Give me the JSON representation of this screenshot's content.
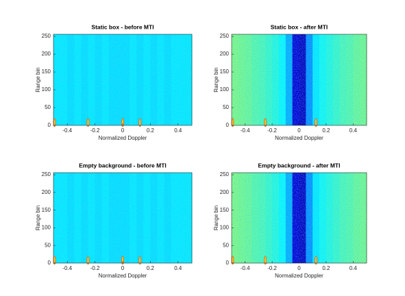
{
  "chart_data": [
    {
      "type": "heatmap",
      "title": "Static box - before MTI",
      "x_label": "Normalized Doppler",
      "y_label": "Range bin",
      "colormap": "jet",
      "x": [
        -0.475,
        -0.425,
        -0.375,
        -0.325,
        -0.275,
        -0.225,
        -0.175,
        -0.125,
        -0.075,
        -0.025,
        0.025,
        0.075,
        0.125,
        0.175,
        0.225,
        0.275,
        0.325,
        0.375,
        0.425,
        0.475
      ],
      "values": [
        0.36,
        0.36,
        0.35,
        0.36,
        0.35,
        0.36,
        0.35,
        0.36,
        0.35,
        0.35,
        0.35,
        0.36,
        0.35,
        0.36,
        0.35,
        0.36,
        0.35,
        0.36,
        0.36,
        0.36
      ],
      "targets": {
        "x": [
          -0.5,
          -0.25,
          0,
          0.125
        ],
        "y": [
          8,
          8,
          8,
          8
        ]
      },
      "xlim": [
        -0.5,
        0.5
      ],
      "xticks": [
        -0.4,
        -0.2,
        0,
        0.2,
        0.4
      ],
      "ylim": [
        0,
        256
      ],
      "yticks": [
        0,
        50,
        100,
        150,
        200,
        250
      ]
    },
    {
      "type": "heatmap",
      "title": "Static box - after MTI",
      "x_label": "Normalized Doppler",
      "y_label": "Range bin",
      "colormap": "jet",
      "x": [
        -0.475,
        -0.425,
        -0.375,
        -0.325,
        -0.275,
        -0.225,
        -0.175,
        -0.125,
        -0.075,
        -0.025,
        0.025,
        0.075,
        0.125,
        0.175,
        0.225,
        0.275,
        0.325,
        0.375,
        0.425,
        0.475
      ],
      "values": [
        0.5,
        0.49,
        0.48,
        0.46,
        0.45,
        0.43,
        0.41,
        0.38,
        0.3,
        0.08,
        0.06,
        0.27,
        0.36,
        0.39,
        0.41,
        0.43,
        0.45,
        0.46,
        0.48,
        0.49
      ],
      "targets": {
        "x": [
          -0.5,
          -0.25,
          0.125
        ],
        "y": [
          8,
          8,
          8
        ]
      },
      "xlim": [
        -0.5,
        0.5
      ],
      "xticks": [
        -0.4,
        -0.2,
        0,
        0.2,
        0.4
      ],
      "ylim": [
        0,
        256
      ],
      "yticks": [
        0,
        50,
        100,
        150,
        200,
        250
      ]
    },
    {
      "type": "heatmap",
      "title": "Empty background - before MTI",
      "x_label": "Normalized Doppler",
      "y_label": "Range bin",
      "colormap": "jet",
      "x": [
        -0.475,
        -0.425,
        -0.375,
        -0.325,
        -0.275,
        -0.225,
        -0.175,
        -0.125,
        -0.075,
        -0.025,
        0.025,
        0.075,
        0.125,
        0.175,
        0.225,
        0.275,
        0.325,
        0.375,
        0.425,
        0.475
      ],
      "values": [
        0.36,
        0.36,
        0.35,
        0.36,
        0.35,
        0.36,
        0.35,
        0.36,
        0.35,
        0.35,
        0.35,
        0.36,
        0.35,
        0.36,
        0.35,
        0.36,
        0.35,
        0.36,
        0.36,
        0.36
      ],
      "targets": {
        "x": [
          -0.5,
          -0.25,
          0,
          0.125
        ],
        "y": [
          8,
          8,
          8,
          8
        ]
      },
      "xlim": [
        -0.5,
        0.5
      ],
      "xticks": [
        -0.4,
        -0.2,
        0,
        0.2,
        0.4
      ],
      "ylim": [
        0,
        256
      ],
      "yticks": [
        0,
        50,
        100,
        150,
        200,
        250
      ]
    },
    {
      "type": "heatmap",
      "title": "Empty background - after MTI",
      "x_label": "Normalized Doppler",
      "y_label": "Range bin",
      "colormap": "jet",
      "x": [
        -0.475,
        -0.425,
        -0.375,
        -0.325,
        -0.275,
        -0.225,
        -0.175,
        -0.125,
        -0.075,
        -0.025,
        0.025,
        0.075,
        0.125,
        0.175,
        0.225,
        0.275,
        0.325,
        0.375,
        0.425,
        0.475
      ],
      "values": [
        0.5,
        0.49,
        0.48,
        0.46,
        0.45,
        0.43,
        0.41,
        0.38,
        0.3,
        0.08,
        0.06,
        0.27,
        0.36,
        0.39,
        0.41,
        0.43,
        0.45,
        0.46,
        0.48,
        0.49
      ],
      "targets": {
        "x": [
          -0.5,
          -0.25,
          0.125
        ],
        "y": [
          8,
          8,
          8
        ]
      },
      "xlim": [
        -0.5,
        0.5
      ],
      "xticks": [
        -0.4,
        -0.2,
        0,
        0.2,
        0.4
      ],
      "ylim": [
        0,
        256
      ],
      "yticks": [
        0,
        50,
        100,
        150,
        200,
        250
      ]
    }
  ]
}
